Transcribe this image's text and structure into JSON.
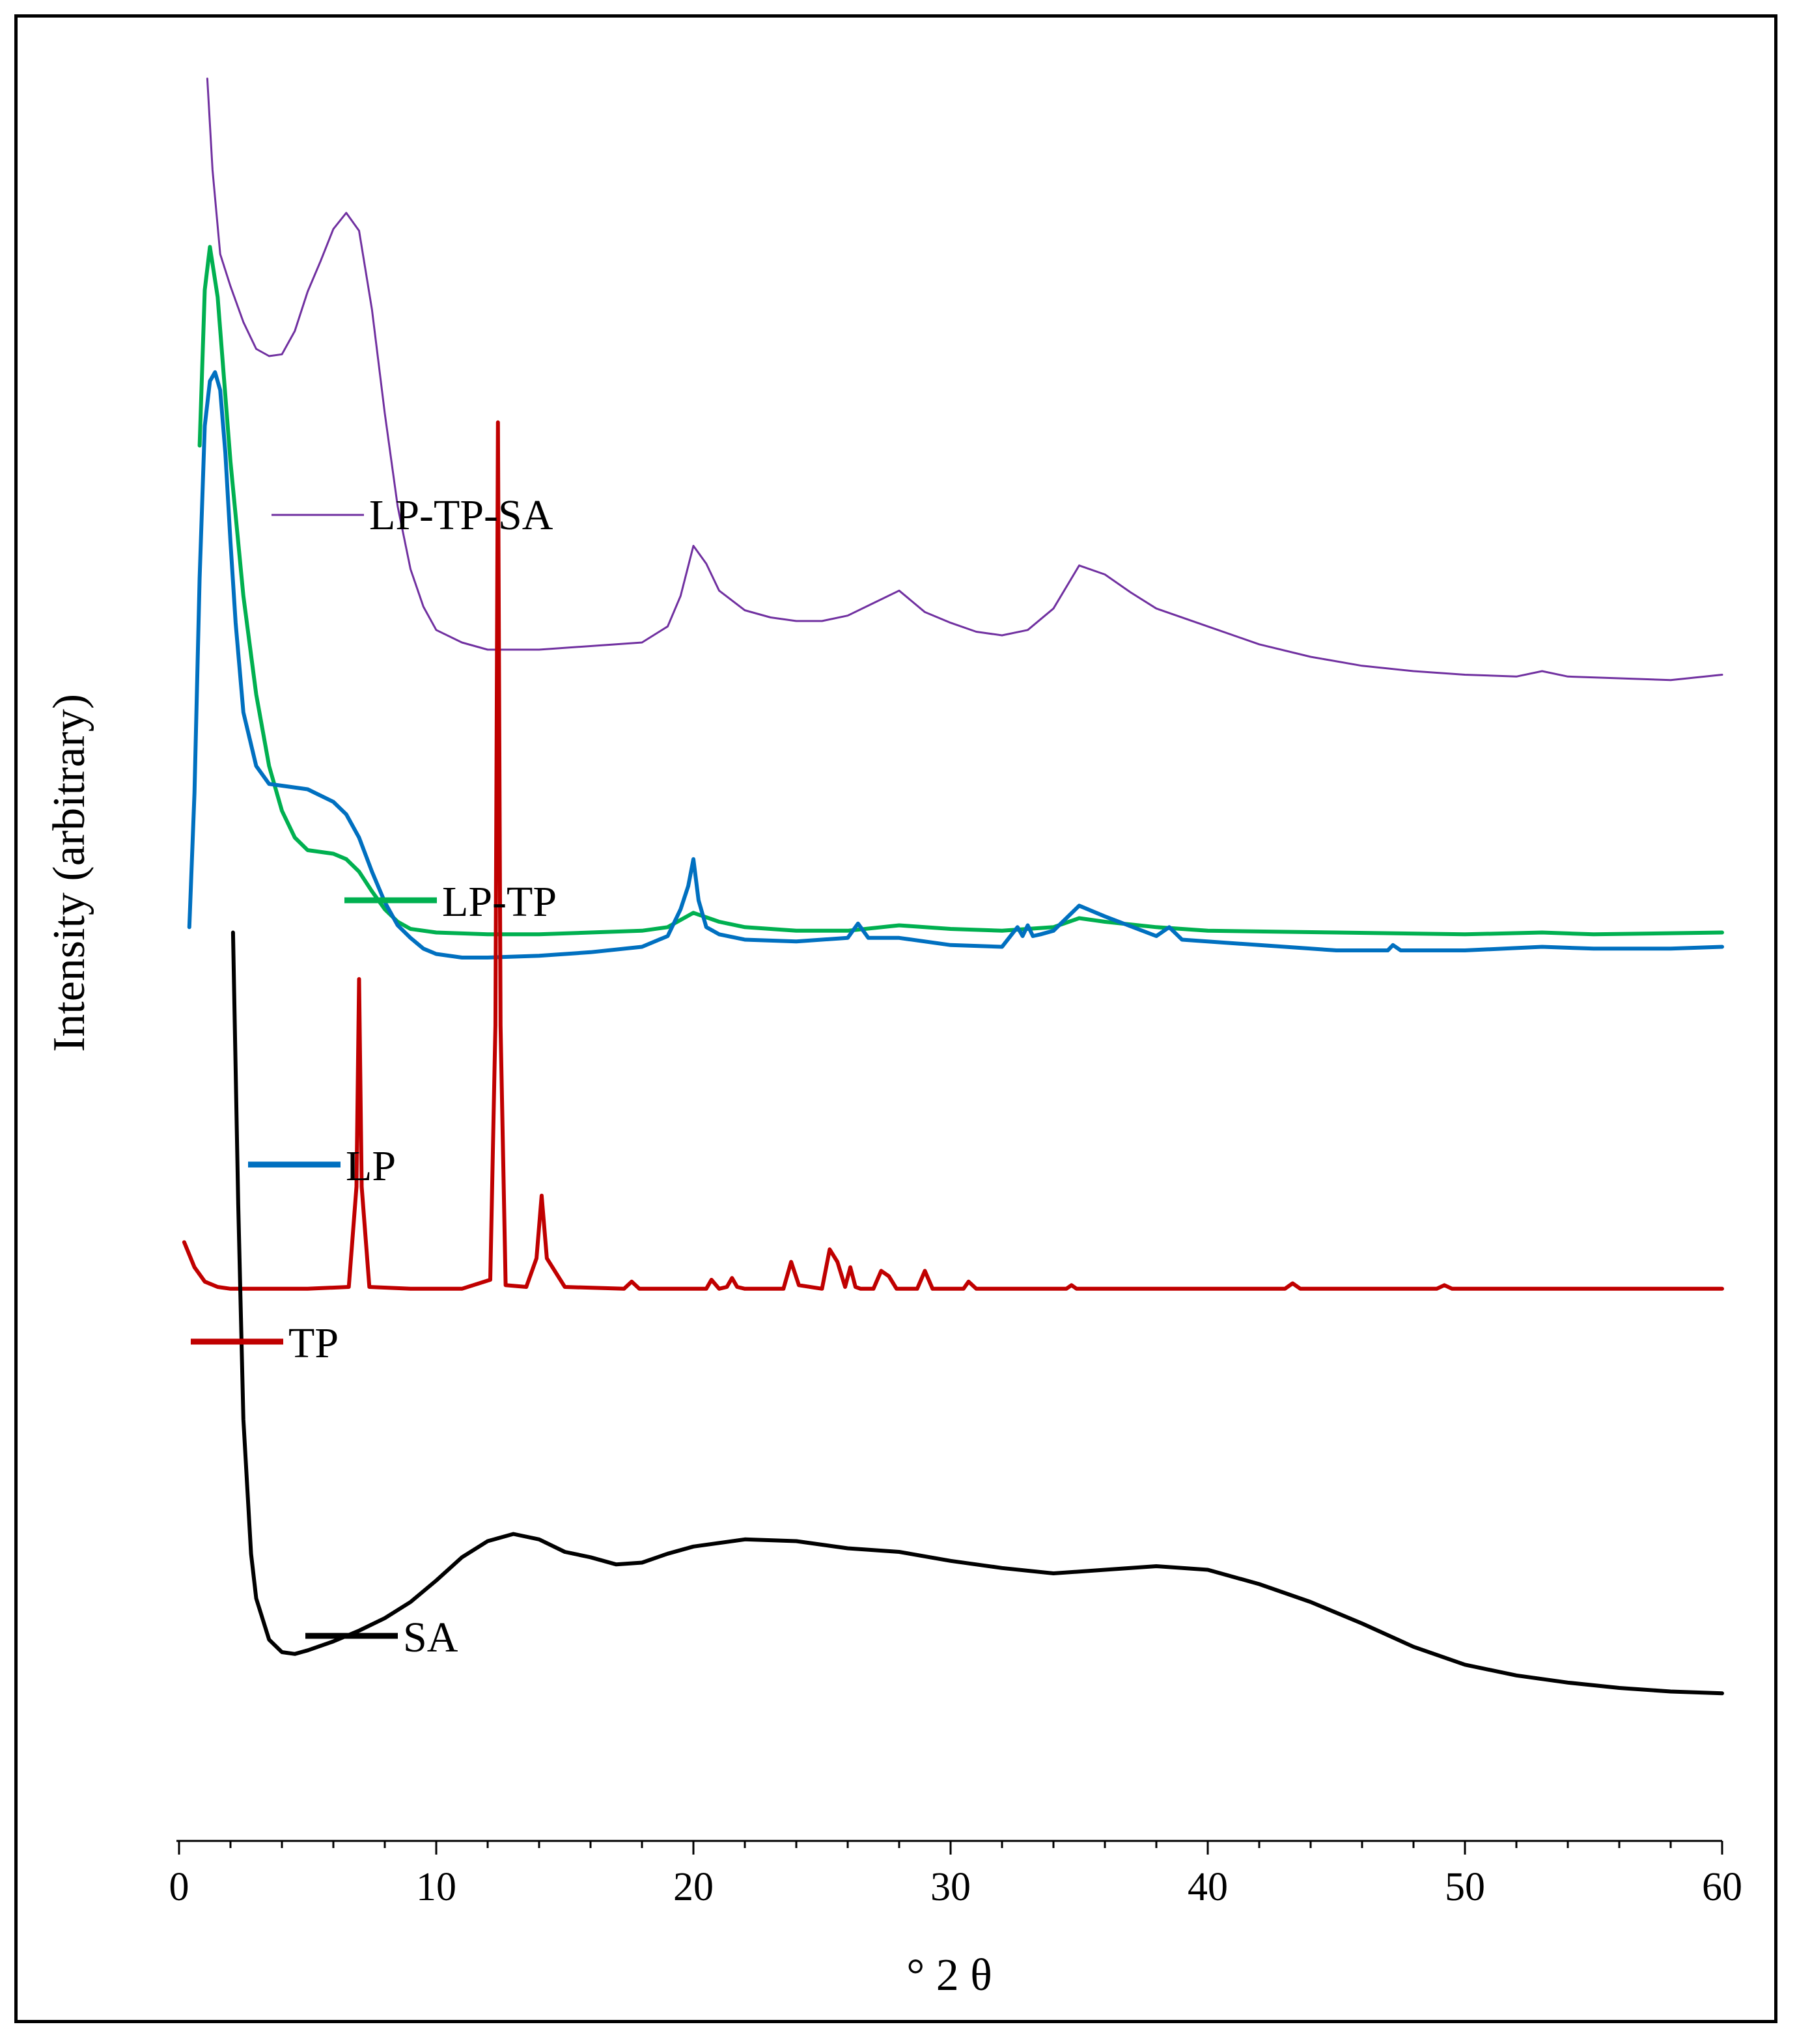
{
  "chart_data": {
    "type": "line",
    "title": "",
    "xlabel": "° 2 θ",
    "ylabel": "Intensity (arbitrary)",
    "xlim": [
      0,
      60
    ],
    "xticks": [
      0,
      10,
      20,
      30,
      40,
      50,
      60
    ],
    "grid": false,
    "legend_placement": "inline, right of each trace",
    "note": "Traces are vertically offset (stacked); y values are relative intensities in arbitrary units on a common 0-100 scale.",
    "series": [
      {
        "name": "LP-TP-SA",
        "color": "#7030A0",
        "x": [
          1.1,
          1.3,
          1.6,
          2.0,
          2.5,
          3.0,
          3.5,
          4.0,
          4.5,
          5.0,
          5.5,
          6.0,
          6.5,
          7.0,
          7.5,
          8.0,
          8.5,
          9.0,
          9.5,
          10.0,
          11.0,
          12.0,
          14.0,
          16.0,
          18.0,
          19.0,
          19.5,
          20.0,
          20.5,
          21.0,
          22.0,
          23.0,
          24.0,
          25.0,
          26.0,
          27.0,
          28.0,
          29.0,
          30.0,
          31.0,
          32.0,
          33.0,
          34.0,
          35.0,
          36.0,
          37.0,
          38.0,
          40.0,
          42.0,
          44.0,
          46.0,
          48.0,
          50.0,
          52.0,
          53.0,
          54.0,
          56.0,
          58.0,
          60.0
        ],
        "y": [
          97.9,
          92.8,
          88.1,
          86.3,
          84.3,
          82.8,
          82.4,
          82.5,
          83.8,
          86.0,
          87.7,
          89.5,
          90.4,
          89.4,
          85.0,
          79.2,
          74.0,
          70.5,
          68.4,
          67.1,
          66.4,
          66.0,
          66.0,
          66.2,
          66.4,
          67.3,
          69.0,
          71.8,
          70.8,
          69.3,
          68.2,
          67.8,
          67.6,
          67.6,
          67.9,
          68.6,
          69.3,
          68.1,
          67.5,
          67.0,
          66.8,
          67.1,
          68.3,
          70.7,
          70.2,
          69.2,
          68.3,
          67.3,
          66.3,
          65.6,
          65.1,
          64.8,
          64.6,
          64.5,
          64.8,
          64.5,
          64.4,
          64.3,
          64.6
        ]
      },
      {
        "name": "LP-TP",
        "color": "#00B050",
        "x": [
          0.8,
          1.0,
          1.2,
          1.5,
          2.0,
          2.5,
          3.0,
          3.5,
          4.0,
          4.5,
          5.0,
          6.0,
          6.5,
          7.0,
          7.5,
          8.0,
          8.5,
          9.0,
          10.0,
          12.0,
          14.0,
          16.0,
          18.0,
          19.0,
          20.0,
          21.0,
          22.0,
          24.0,
          26.0,
          28.0,
          30.0,
          32.0,
          34.0,
          35.0,
          36.0,
          38.0,
          40.0,
          45.0,
          50.0,
          53.0,
          55.0,
          60.0
        ],
        "y": [
          77.4,
          86.1,
          88.5,
          85.7,
          76.5,
          69.0,
          63.5,
          59.5,
          57.0,
          55.5,
          54.8,
          54.6,
          54.3,
          53.6,
          52.5,
          51.5,
          50.8,
          50.4,
          50.2,
          50.1,
          50.1,
          50.2,
          50.3,
          50.5,
          51.3,
          50.8,
          50.5,
          50.3,
          50.3,
          50.6,
          50.4,
          50.3,
          50.5,
          51.0,
          50.8,
          50.5,
          50.3,
          50.2,
          50.1,
          50.2,
          50.1,
          50.2
        ]
      },
      {
        "name": "LP",
        "color": "#0070C0",
        "x": [
          0.4,
          0.6,
          0.8,
          1.0,
          1.2,
          1.4,
          1.6,
          1.8,
          2.0,
          2.2,
          2.5,
          3.0,
          3.5,
          4.0,
          5.0,
          6.0,
          6.5,
          7.0,
          7.5,
          8.0,
          8.5,
          9.0,
          9.5,
          10.0,
          11.0,
          12.0,
          14.0,
          16.0,
          18.0,
          19.0,
          19.5,
          19.8,
          20.0,
          20.2,
          20.5,
          21.0,
          22.0,
          24.0,
          26.0,
          26.4,
          26.8,
          28.0,
          30.0,
          32.0,
          32.6,
          32.8,
          33.0,
          33.2,
          33.5,
          34.0,
          35.0,
          36.0,
          38.0,
          38.5,
          39.0,
          42.0,
          45.0,
          47.0,
          47.2,
          47.5,
          50.0,
          53.0,
          55.0,
          58.0,
          60.0
        ],
        "y": [
          50.5,
          58.0,
          70.0,
          78.5,
          81.0,
          81.5,
          80.5,
          77.0,
          72.0,
          67.5,
          62.5,
          59.5,
          58.5,
          58.4,
          58.2,
          57.5,
          56.8,
          55.5,
          53.6,
          51.9,
          50.6,
          49.9,
          49.3,
          49.0,
          48.8,
          48.8,
          48.9,
          49.1,
          49.4,
          50.0,
          51.5,
          52.8,
          54.3,
          52.0,
          50.5,
          50.1,
          49.8,
          49.7,
          49.9,
          50.7,
          49.9,
          49.9,
          49.5,
          49.4,
          50.5,
          50.0,
          50.6,
          50.0,
          50.1,
          50.3,
          51.7,
          51.1,
          50.0,
          50.5,
          49.8,
          49.5,
          49.2,
          49.2,
          49.5,
          49.2,
          49.2,
          49.4,
          49.3,
          49.3,
          49.4
        ]
      },
      {
        "name": "TP",
        "color": "#C00000",
        "x": [
          0.2,
          0.6,
          1.0,
          1.5,
          2.0,
          3.0,
          5.0,
          6.6,
          6.9,
          7.0,
          7.1,
          7.4,
          9.0,
          11.0,
          12.1,
          12.3,
          12.4,
          12.5,
          12.7,
          13.5,
          13.9,
          14.1,
          14.3,
          15.0,
          17.3,
          17.6,
          17.9,
          20.5,
          20.7,
          21.0,
          21.3,
          21.5,
          21.7,
          22.0,
          23.5,
          23.8,
          24.1,
          25.0,
          25.3,
          25.6,
          25.9,
          26.1,
          26.3,
          26.5,
          27.0,
          27.3,
          27.6,
          27.9,
          28.7,
          29.0,
          29.3,
          30.5,
          30.7,
          31.0,
          34.5,
          34.7,
          34.9,
          43.0,
          43.3,
          43.6,
          48.9,
          49.2,
          49.5,
          52.0,
          60.0
        ],
        "y": [
          32.9,
          31.5,
          30.7,
          30.4,
          30.3,
          30.3,
          30.3,
          30.4,
          36.0,
          47.6,
          36.0,
          30.4,
          30.3,
          30.3,
          30.8,
          45.0,
          78.7,
          45.0,
          30.5,
          30.4,
          32.0,
          35.5,
          32.0,
          30.4,
          30.3,
          30.7,
          30.3,
          30.3,
          30.8,
          30.3,
          30.4,
          30.9,
          30.4,
          30.3,
          30.3,
          31.8,
          30.5,
          30.3,
          32.5,
          31.8,
          30.4,
          31.5,
          30.4,
          30.3,
          30.3,
          31.3,
          31.0,
          30.3,
          30.3,
          31.3,
          30.3,
          30.3,
          30.7,
          30.3,
          30.3,
          30.5,
          30.3,
          30.3,
          30.6,
          30.3,
          30.3,
          30.5,
          30.3,
          30.3,
          30.3
        ]
      },
      {
        "name": "SA",
        "color": "#000000",
        "x": [
          2.1,
          2.3,
          2.5,
          2.8,
          3.0,
          3.5,
          4.0,
          4.5,
          5.0,
          6.0,
          7.0,
          8.0,
          9.0,
          10.0,
          11.0,
          12.0,
          13.0,
          14.0,
          15.0,
          16.0,
          17.0,
          18.0,
          19.0,
          20.0,
          22.0,
          24.0,
          26.0,
          28.0,
          30.0,
          32.0,
          34.0,
          36.0,
          38.0,
          40.0,
          42.0,
          44.0,
          46.0,
          48.0,
          50.0,
          52.0,
          54.0,
          56.0,
          58.0,
          60.0
        ],
        "y": [
          50.2,
          35.0,
          23.0,
          15.5,
          13.0,
          10.7,
          10.0,
          9.9,
          10.1,
          10.6,
          11.2,
          11.9,
          12.8,
          14.0,
          15.3,
          16.2,
          16.6,
          16.3,
          15.6,
          15.3,
          14.9,
          15.0,
          15.5,
          15.9,
          16.3,
          16.2,
          15.8,
          15.6,
          15.1,
          14.7,
          14.4,
          14.6,
          14.8,
          14.6,
          13.8,
          12.8,
          11.6,
          10.3,
          9.3,
          8.7,
          8.3,
          8.0,
          7.8,
          7.7
        ]
      }
    ]
  }
}
